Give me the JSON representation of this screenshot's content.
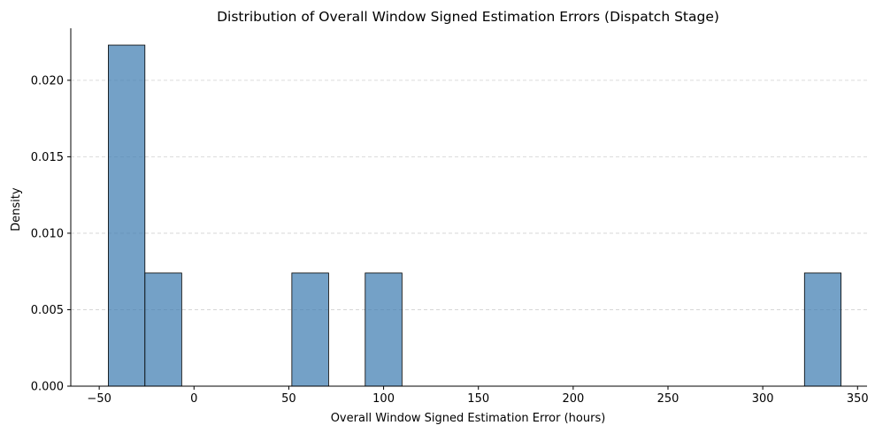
{
  "chart_data": {
    "type": "bar",
    "title": "Distribution of Overall Window Signed Estimation Errors (Dispatch Stage)",
    "xlabel": "Overall Window Signed Estimation Error (hours)",
    "ylabel": "Density",
    "xlim": [
      -65,
      355
    ],
    "ylim": [
      0,
      0.0234
    ],
    "xticks": [
      -50,
      0,
      50,
      100,
      150,
      200,
      250,
      300,
      350
    ],
    "xtick_labels": [
      "−50",
      "0",
      "50",
      "100",
      "150",
      "200",
      "250",
      "300",
      "350"
    ],
    "yticks": [
      0,
      0.005,
      0.01,
      0.015,
      0.02
    ],
    "ytick_labels": [
      "0.000",
      "0.005",
      "0.010",
      "0.015",
      "0.020"
    ],
    "grid": {
      "y": true,
      "x": false,
      "style": "dashed"
    },
    "bins": [
      {
        "x0": -45.2,
        "x1": -25.9,
        "density": 0.0223
      },
      {
        "x0": -25.9,
        "x1": -6.5,
        "density": 0.0074
      },
      {
        "x0": 51.6,
        "x1": 71.0,
        "density": 0.0074
      },
      {
        "x0": 90.3,
        "x1": 109.7,
        "density": 0.0074
      },
      {
        "x0": 322.0,
        "x1": 341.3,
        "density": 0.0074
      }
    ],
    "bar_color": "#4682b4",
    "bar_opacity": 0.75,
    "edge_color": "#000000"
  }
}
